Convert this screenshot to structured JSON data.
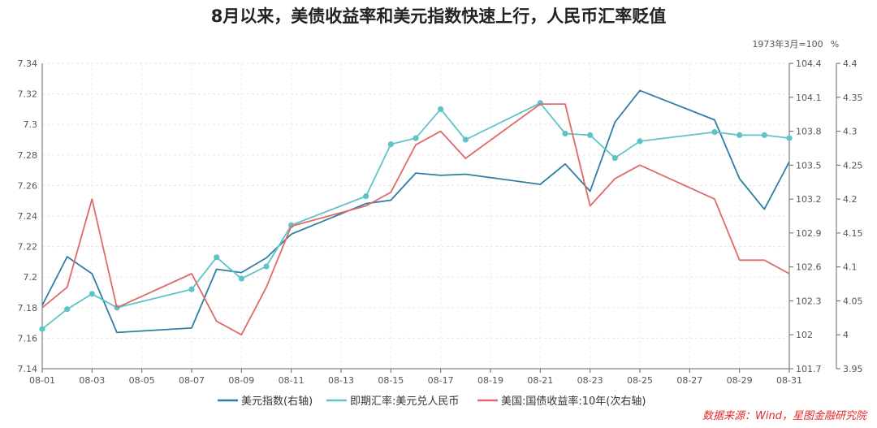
{
  "chart_data": {
    "type": "line",
    "title": "8月以来，美债收益率和美元指数快速上行，人民币汇率贬值",
    "unit_right1": "1973年3月=100",
    "unit_right2": "%",
    "source": "数据来源：Wind，星图金融研究院",
    "x_ticks": [
      "08-01",
      "08-03",
      "08-05",
      "08-07",
      "08-09",
      "08-11",
      "08-13",
      "08-15",
      "08-17",
      "08-19",
      "08-21",
      "08-23",
      "08-25",
      "08-27",
      "08-29",
      "08-31"
    ],
    "axes": {
      "left": {
        "min": 7.14,
        "max": 7.34,
        "ticks": [
          "7.14",
          "7.16",
          "7.18",
          "7.2",
          "7.22",
          "7.24",
          "7.26",
          "7.28",
          "7.3",
          "7.32",
          "7.34"
        ]
      },
      "right1": {
        "min": 101.7,
        "max": 104.4,
        "ticks": [
          "101.7",
          "102",
          "102.3",
          "102.6",
          "102.9",
          "103.2",
          "103.5",
          "103.8",
          "104.1",
          "104.4"
        ]
      },
      "right2": {
        "min": 3.95,
        "max": 4.4,
        "ticks": [
          "3.95",
          "4",
          "4.05",
          "4.1",
          "4.15",
          "4.2",
          "4.25",
          "4.3",
          "4.35",
          "4.4"
        ]
      }
    },
    "series": [
      {
        "name": "美元指数(右轴)",
        "axis": "right1",
        "color": "#2f7ea6",
        "markers": false,
        "x": [
          1,
          2,
          3,
          4,
          7,
          8,
          9,
          10,
          11,
          14,
          15,
          16,
          17,
          18,
          21,
          22,
          23,
          24,
          25,
          28,
          29,
          30,
          31
        ],
        "y": [
          102.26,
          102.69,
          102.54,
          102.02,
          102.06,
          102.58,
          102.55,
          102.68,
          102.89,
          103.16,
          103.19,
          103.43,
          103.41,
          103.42,
          103.33,
          103.51,
          103.27,
          103.88,
          104.16,
          103.9,
          103.38,
          103.11,
          103.53
        ]
      },
      {
        "name": "即期汇率:美元兑人民币",
        "axis": "left",
        "color": "#5fc4c8",
        "markers": true,
        "x": [
          1,
          2,
          3,
          4,
          7,
          8,
          9,
          10,
          11,
          14,
          15,
          16,
          17,
          18,
          21,
          22,
          23,
          24,
          25,
          28,
          29,
          30,
          31
        ],
        "y": [
          7.166,
          7.179,
          7.189,
          7.18,
          7.192,
          7.213,
          7.199,
          7.207,
          7.234,
          7.253,
          7.287,
          7.291,
          7.31,
          7.29,
          7.314,
          7.294,
          7.293,
          7.278,
          7.289,
          7.295,
          7.293,
          7.293,
          7.291
        ]
      },
      {
        "name": "美国:国债收益率:10年(次右轴)",
        "axis": "right2",
        "color": "#e06a6a",
        "markers": false,
        "x": [
          1,
          2,
          3,
          4,
          7,
          8,
          9,
          10,
          11,
          14,
          15,
          16,
          17,
          18,
          21,
          22,
          23,
          24,
          25,
          28,
          29,
          30,
          31
        ],
        "y": [
          4.04,
          4.07,
          4.2,
          4.04,
          4.09,
          4.02,
          4.0,
          4.07,
          4.16,
          4.19,
          4.21,
          4.28,
          4.3,
          4.26,
          4.34,
          4.34,
          4.19,
          4.23,
          4.25,
          4.2,
          4.11,
          4.11,
          4.09
        ]
      }
    ]
  }
}
